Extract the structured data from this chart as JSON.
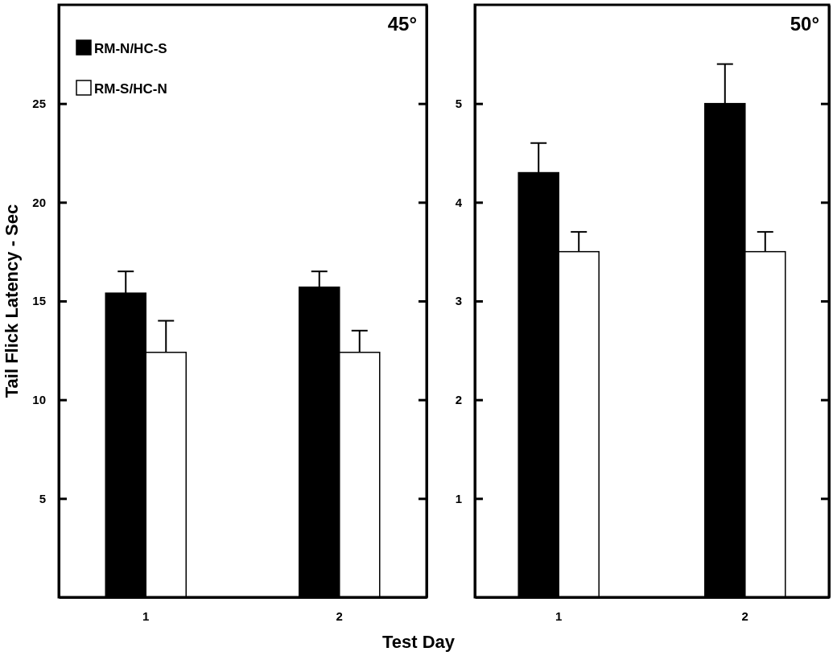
{
  "chart_data": [
    {
      "type": "bar",
      "categories": [
        "1",
        "2"
      ],
      "ylabel": "Tail Flick Latency - Sec",
      "xlabel": "Test Day",
      "annotations": [
        "45°"
      ],
      "ylim": [
        0,
        30
      ],
      "yticks": [
        5,
        10,
        15,
        20,
        25
      ],
      "legend": "top left",
      "series": [
        {
          "name": "RM-N/HC-S",
          "color": "#000000",
          "values": [
            15.4,
            15.7
          ],
          "errors": [
            [
              15.4,
              16.5
            ],
            [
              15.7,
              16.5
            ]
          ]
        },
        {
          "name": "RM-S/HC-N",
          "color": "#ffffff",
          "values": [
            12.4,
            12.4
          ],
          "errors": [
            [
              12.4,
              14.0
            ],
            [
              12.4,
              13.5
            ]
          ]
        }
      ]
    },
    {
      "type": "bar",
      "categories": [
        "1",
        "2"
      ],
      "annotations": [
        "50°"
      ],
      "ylim": [
        0,
        6
      ],
      "yticks": [
        1,
        2,
        3,
        4,
        5
      ],
      "series": [
        {
          "color": "#000000",
          "values": [
            4.3,
            5.0
          ],
          "errors": [
            [
              4.3,
              4.6
            ],
            [
              5.0,
              5.4
            ]
          ]
        },
        {
          "color": "#ffffff",
          "values": [
            3.5,
            3.5
          ],
          "errors": [
            [
              3.5,
              3.7
            ],
            [
              3.5,
              3.7
            ]
          ]
        }
      ]
    }
  ]
}
